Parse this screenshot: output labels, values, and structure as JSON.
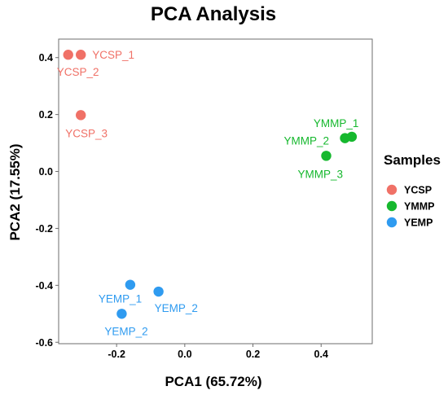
{
  "chart_data": {
    "type": "scatter",
    "title": "PCA Analysis",
    "xlabel": "PCA1 (65.72%)",
    "ylabel": "PCA2 (17.55%)",
    "xlim": [
      -0.37,
      0.55
    ],
    "ylim": [
      -0.605,
      0.465
    ],
    "xticks": [
      -0.2,
      0.0,
      0.2,
      0.4
    ],
    "xtick_labels": [
      "-0.2",
      "0.0",
      "0.2",
      "0.4"
    ],
    "yticks": [
      0.4,
      0.2,
      0.0,
      -0.2,
      -0.4,
      -0.6
    ],
    "ytick_labels": [
      "0.4",
      "0.2",
      "0.0",
      "-0.2",
      "-0.4",
      "-0.6"
    ],
    "grid": false,
    "legend": {
      "title": "Samples",
      "position": "right"
    },
    "series": [
      {
        "name": "YCSP",
        "color": "#F07167",
        "points": [
          {
            "label": "YCSP_1",
            "x": -0.305,
            "y": 0.41
          },
          {
            "label": "YCSP_2",
            "x": -0.342,
            "y": 0.41
          },
          {
            "label": "YCSP_3",
            "x": -0.305,
            "y": 0.198
          }
        ]
      },
      {
        "name": "YMMP",
        "color": "#16B82E",
        "points": [
          {
            "label": "YMMP_1",
            "x": 0.49,
            "y": 0.122
          },
          {
            "label": "YMMP_2",
            "x": 0.47,
            "y": 0.117
          },
          {
            "label": "YMMP_3",
            "x": 0.415,
            "y": 0.055
          }
        ]
      },
      {
        "name": "YEMP",
        "color": "#2F9BF0",
        "points": [
          {
            "label": "YEMP_1",
            "x": -0.16,
            "y": -0.398
          },
          {
            "label": "YEMP_2",
            "x": -0.077,
            "y": -0.422
          },
          {
            "label": "YEMP_2",
            "x": -0.185,
            "y": -0.5
          }
        ]
      }
    ]
  }
}
